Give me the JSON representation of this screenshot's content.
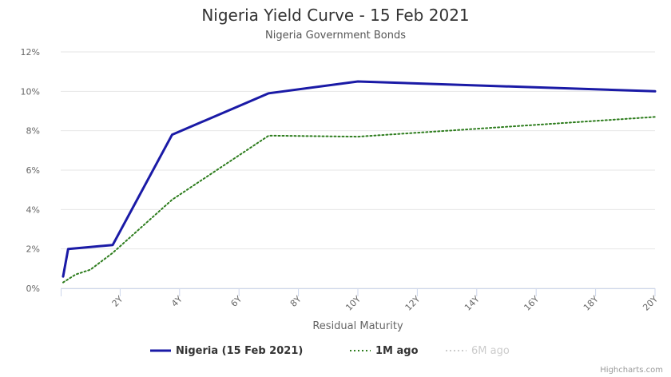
{
  "chart_data": {
    "type": "line",
    "title": "Nigeria Yield Curve - 15 Feb 2021",
    "subtitle": "Nigeria Government Bonds",
    "xlabel": "Residual Maturity",
    "ylabel": "",
    "x_ticks": [
      2,
      4,
      6,
      8,
      10,
      12,
      14,
      16,
      18,
      20
    ],
    "x_tick_labels": [
      "2Y",
      "4Y",
      "6Y",
      "8Y",
      "10Y",
      "12Y",
      "14Y",
      "16Y",
      "18Y",
      "20Y"
    ],
    "xlim": [
      0,
      20
    ],
    "y_ticks": [
      0,
      2,
      4,
      6,
      8,
      10,
      12
    ],
    "y_tick_labels": [
      "0%",
      "2%",
      "4%",
      "6%",
      "8%",
      "10%",
      "12%"
    ],
    "ylim": [
      0,
      12
    ],
    "grid": "horizontal",
    "legend_position": "bottom",
    "series": [
      {
        "name": "Nigeria (15 Feb 2021)",
        "color": "#1a1aa6",
        "style": "solid",
        "visible": true,
        "points": [
          [
            0.08,
            0.6
          ],
          [
            0.25,
            2.0
          ],
          [
            1.0,
            2.1
          ],
          [
            1.75,
            2.2
          ],
          [
            3.75,
            7.8
          ],
          [
            7.0,
            9.9
          ],
          [
            10.0,
            10.5
          ],
          [
            20.0,
            10.0
          ]
        ]
      },
      {
        "name": "1M ago",
        "color": "#2e7d1e",
        "style": "dotted",
        "visible": true,
        "points": [
          [
            0.08,
            0.3
          ],
          [
            0.5,
            0.7
          ],
          [
            1.0,
            0.95
          ],
          [
            1.75,
            1.8
          ],
          [
            3.75,
            4.5
          ],
          [
            7.0,
            7.75
          ],
          [
            10.0,
            7.7
          ],
          [
            20.0,
            8.7
          ]
        ]
      },
      {
        "name": "6M ago",
        "color": "#cccccc",
        "style": "dotted",
        "visible": false,
        "points": []
      }
    ]
  },
  "credits": "Highcharts.com"
}
